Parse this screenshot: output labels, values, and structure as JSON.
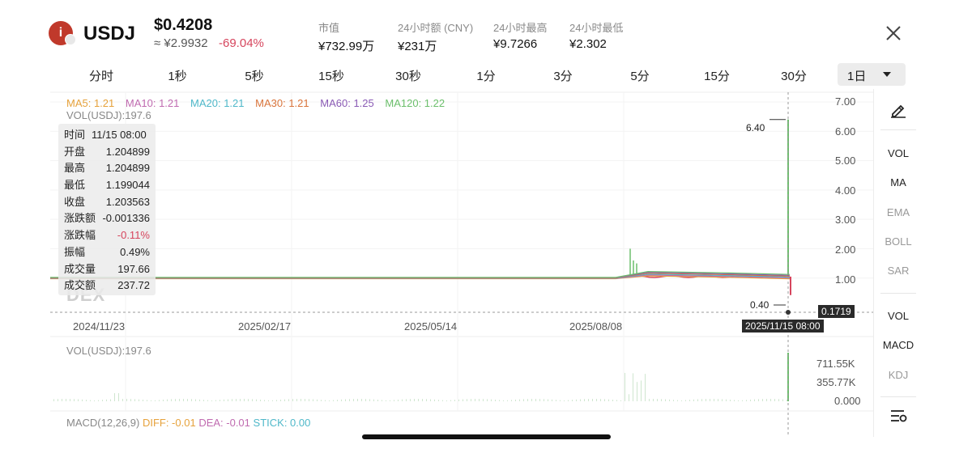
{
  "header": {
    "logo_letter": "i",
    "symbol": "USDJ",
    "price_usd": "$0.4208",
    "price_cny": "≈ ¥2.9932",
    "change_pct": "-69.04%",
    "stats": [
      {
        "label": "市值",
        "value": "¥732.99万"
      },
      {
        "label": "24小时额 (CNY)",
        "value": "¥231万"
      },
      {
        "label": "24小时最高",
        "value": "¥9.7266"
      },
      {
        "label": "24小时最低",
        "value": "¥2.302"
      }
    ]
  },
  "timeframes": [
    "分时",
    "1秒",
    "5秒",
    "15秒",
    "30秒",
    "1分",
    "3分",
    "5分",
    "15分",
    "30分"
  ],
  "active_timeframe": "1日",
  "ma_legend": [
    {
      "label": "MA5: 1.21",
      "color": "#e6a23c"
    },
    {
      "label": "MA10: 1.21",
      "color": "#c06bb0"
    },
    {
      "label": "MA20: 1.21",
      "color": "#4fb8c9"
    },
    {
      "label": "MA30: 1.21",
      "color": "#d9743b"
    },
    {
      "label": "MA60: 1.25",
      "color": "#8a5bb5"
    },
    {
      "label": "MA120: 1.22",
      "color": "#6cbf6c"
    }
  ],
  "vol_label": "VOL(USDJ):197.6",
  "watermark": "DEX",
  "info_box": {
    "time_label": "时间",
    "time_value": "11/15 08:00",
    "rows": [
      {
        "k": "开盘",
        "v": "1.204899",
        "neg": false
      },
      {
        "k": "最高",
        "v": "1.204899",
        "neg": false
      },
      {
        "k": "最低",
        "v": "1.199044",
        "neg": false
      },
      {
        "k": "收盘",
        "v": "1.203563",
        "neg": false
      },
      {
        "k": "涨跌额",
        "v": "-0.001336",
        "neg": false
      },
      {
        "k": "涨跌幅",
        "v": "-0.11%",
        "neg": true
      },
      {
        "k": "振幅",
        "v": "0.49%",
        "neg": false
      },
      {
        "k": "成交量",
        "v": "197.66",
        "neg": false
      },
      {
        "k": "成交额",
        "v": "237.72",
        "neg": false
      }
    ]
  },
  "chart_data": {
    "type": "candlestick",
    "y_ticks": [
      "7.00",
      "6.00",
      "5.00",
      "4.00",
      "3.00",
      "2.00",
      "1.00"
    ],
    "ylim": [
      0,
      7
    ],
    "x_ticks": [
      "2024/11/23",
      "2025/02/17",
      "2025/05/14",
      "2025/08/08"
    ],
    "high_marker": "6.40",
    "low_marker": "0.40",
    "current_price_tag": "0.1719",
    "cursor_time": "2025/11/15 08:00",
    "price_series": {
      "before_aug": 1.0,
      "aug_spike_high": 2.0,
      "after_aug": 1.05,
      "final_spike_high": 6.4,
      "final_close": 0.42
    },
    "volume_axis": [
      "711.55K",
      "355.77K",
      "0.000"
    ],
    "macd": {
      "label": "MACD(12,26,9)",
      "diff": "DIFF: -0.01",
      "dea": "DEA: -0.01",
      "stick": "STICK: 0.00"
    }
  },
  "right_toolbar": {
    "main": [
      "VOL",
      "MA",
      "EMA",
      "BOLL",
      "SAR"
    ],
    "sub": [
      "VOL",
      "MACD",
      "KDJ"
    ]
  }
}
